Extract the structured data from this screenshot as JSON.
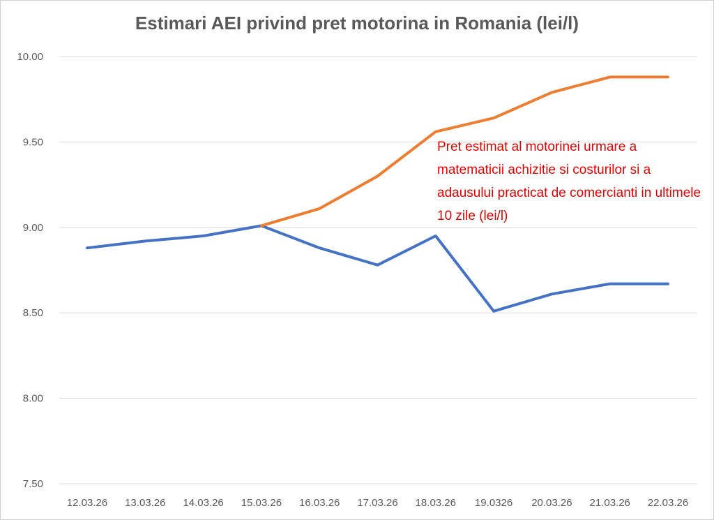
{
  "chart_data": {
    "type": "line",
    "title": "Estimari AEI privind pret motorina in Romania (lei/l)",
    "xlabel": "",
    "ylabel": "",
    "categories": [
      "12.03.26",
      "13.03.26",
      "14.03.26",
      "15.03.26",
      "16.03.26",
      "17.03.26",
      "18.03.26",
      "19.0326",
      "20.03.26",
      "21.03.26",
      "22.03.26"
    ],
    "ylim": [
      7.5,
      10.0
    ],
    "yticks": [
      "7.50",
      "8.00",
      "8.50",
      "9.00",
      "9.50",
      "10.00"
    ],
    "grid": true,
    "legend": "none",
    "series": [
      {
        "color": "#4472c4",
        "values": [
          8.88,
          8.92,
          8.95,
          9.01,
          8.88,
          8.78,
          8.95,
          8.51,
          8.61,
          8.67,
          8.67
        ]
      },
      {
        "color": "#ed7d31",
        "values": [
          null,
          null,
          null,
          9.01,
          9.11,
          9.3,
          9.56,
          9.64,
          9.79,
          9.88,
          9.88
        ]
      }
    ],
    "annotation": "Pret estimat al motorinei urmare a matematicii achizitie si costurilor si a adausului practicat de comercianti in ultimele 10 zile (lei/l)",
    "annotation_color": "#e00000"
  }
}
